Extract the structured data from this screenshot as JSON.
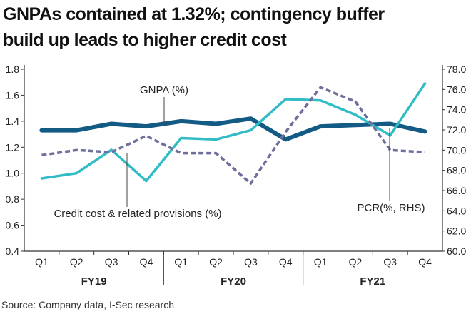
{
  "title": {
    "line1": "GNPAs contained at 1.32%; contingency buffer",
    "line2": "build up leads to higher credit cost"
  },
  "source": "Source: Company data, I-Sec research",
  "colors": {
    "gnpa": "#135b85",
    "credit_cost": "#32bcc6",
    "pcr": "#6e6f9c",
    "axis": "#333333",
    "text": "#222222"
  },
  "chart_data": {
    "type": "line",
    "categories": [
      "Q1",
      "Q2",
      "Q3",
      "Q4",
      "Q1",
      "Q2",
      "Q3",
      "Q4",
      "Q1",
      "Q2",
      "Q3",
      "Q4"
    ],
    "groups": [
      {
        "label": "FY19",
        "from": 0,
        "to": 3
      },
      {
        "label": "FY20",
        "from": 4,
        "to": 7
      },
      {
        "label": "FY21",
        "from": 8,
        "to": 11
      }
    ],
    "ylim": [
      0.4,
      1.8
    ],
    "yticks": [
      "0.4",
      "0.6",
      "0.8",
      "1.0",
      "1.2",
      "1.4",
      "1.6",
      "1.8"
    ],
    "y2lim": [
      60.0,
      78.0
    ],
    "y2ticks": [
      "60.0",
      "62.0",
      "64.0",
      "66.0",
      "68.0",
      "70.0",
      "72.0",
      "74.0",
      "76.0",
      "78.0"
    ],
    "series": [
      {
        "name": "GNPA (%)",
        "axis": "left",
        "style": "solid-thick",
        "values": [
          1.33,
          1.33,
          1.38,
          1.36,
          1.4,
          1.38,
          1.42,
          1.26,
          1.36,
          1.37,
          1.38,
          1.32
        ]
      },
      {
        "name": "Credit cost & related provisions (%)",
        "axis": "left",
        "style": "solid",
        "values": [
          0.96,
          1.0,
          1.18,
          0.94,
          1.27,
          1.26,
          1.33,
          1.57,
          1.56,
          1.45,
          1.29,
          1.69
        ]
      },
      {
        "name": "PCR(%, RHS)",
        "axis": "right",
        "style": "dashed",
        "values": [
          69.5,
          70.0,
          69.8,
          71.4,
          69.7,
          69.7,
          66.7,
          71.8,
          76.2,
          74.8,
          70.0,
          69.8
        ]
      }
    ],
    "annotations": [
      {
        "text": "GNPA (%)",
        "series": 0
      },
      {
        "text": "Credit cost & related provisions (%)",
        "series": 1
      },
      {
        "text": "PCR(%, RHS)",
        "series": 2
      }
    ]
  }
}
